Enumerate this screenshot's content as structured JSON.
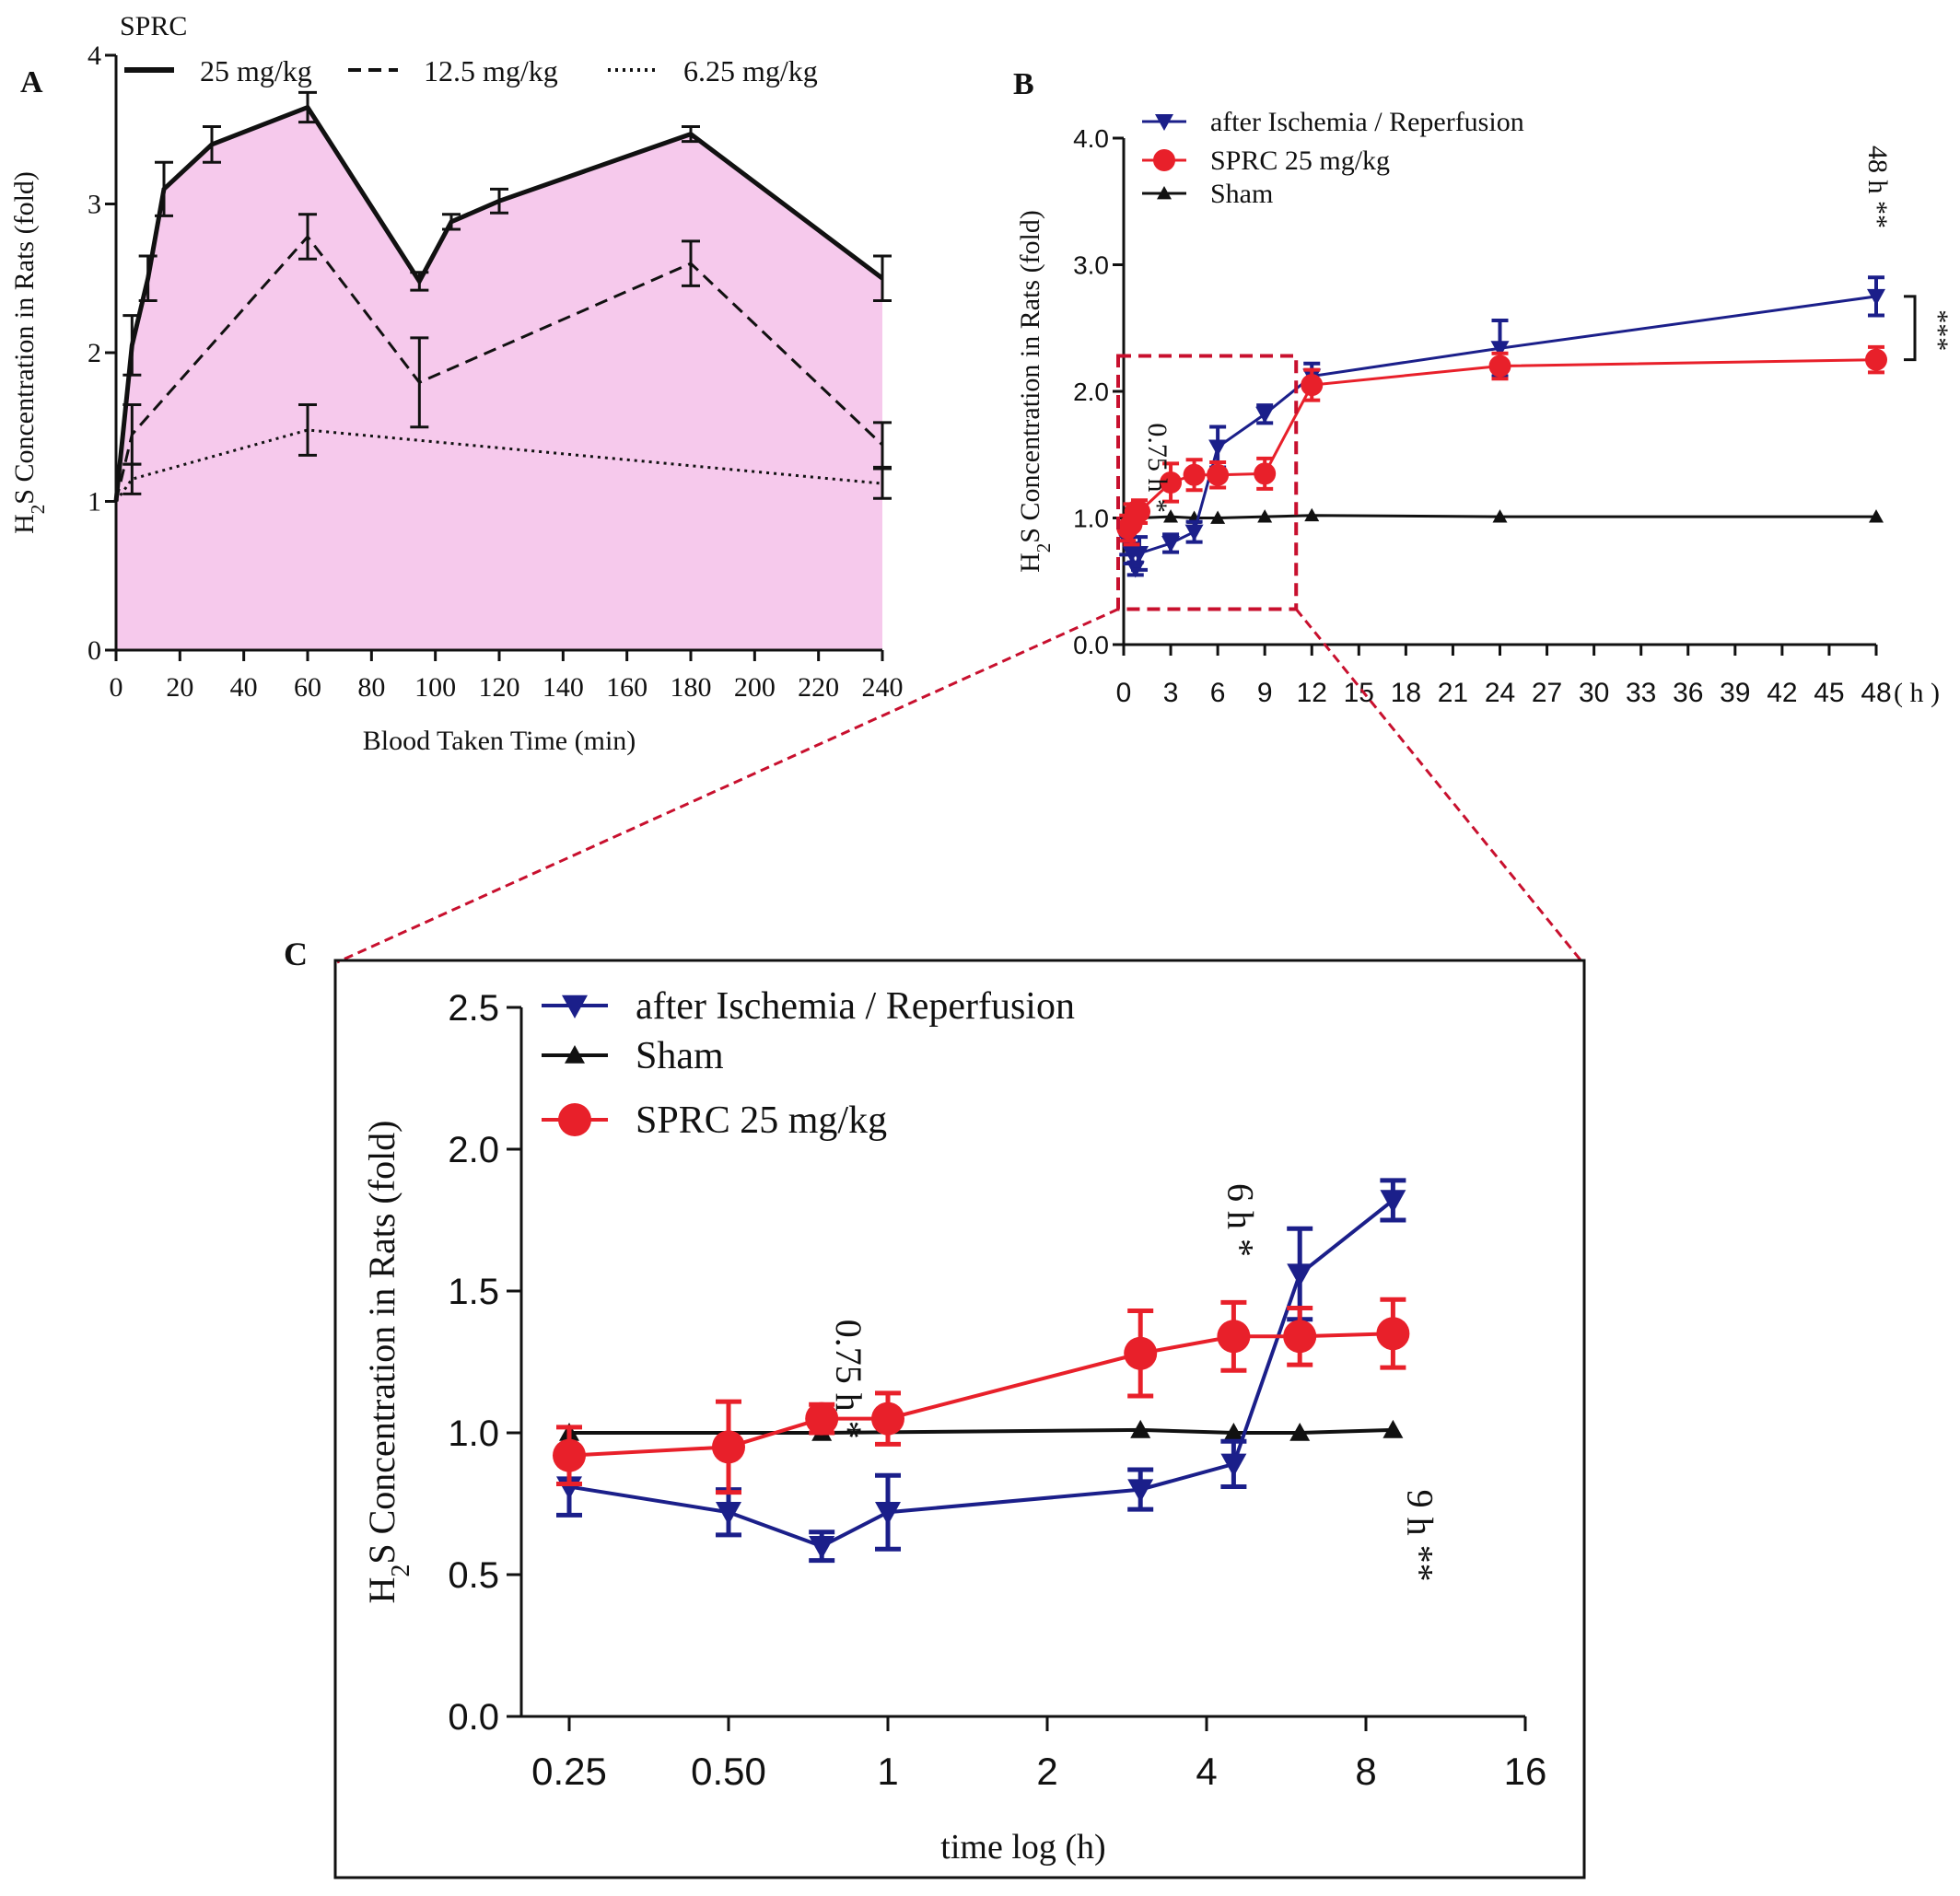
{
  "chart_data": [
    {
      "panel": "A",
      "type": "area",
      "title": "",
      "xlabel": "Blood Taken Time (min)",
      "ylabel": "H2S Concentration in Rats  (fold)",
      "xlim": [
        0,
        240
      ],
      "ylim": [
        0,
        4
      ],
      "xticks": [
        0,
        20,
        40,
        60,
        80,
        100,
        120,
        140,
        160,
        180,
        200,
        220,
        240
      ],
      "yticks": [
        0,
        1,
        2,
        3,
        4
      ],
      "legend_title": "SPRC",
      "legend_position": "top",
      "fill_color": "#f6c9ec",
      "series": [
        {
          "name": "25 mg/kg",
          "style": "solid",
          "x": [
            0,
            5,
            10,
            15,
            30,
            60,
            95,
            105,
            120,
            180,
            240
          ],
          "y": [
            1.0,
            2.05,
            2.5,
            3.1,
            3.4,
            3.65,
            2.48,
            2.88,
            3.02,
            3.47,
            2.5
          ],
          "err": [
            0.03,
            0.2,
            0.15,
            0.18,
            0.12,
            0.1,
            0.06,
            0.05,
            0.08,
            0.05,
            0.15
          ]
        },
        {
          "name": "12.5 mg/kg",
          "style": "dashed",
          "x": [
            0,
            5,
            60,
            95,
            180,
            240
          ],
          "y": [
            1.0,
            1.45,
            2.78,
            1.8,
            2.6,
            1.38
          ],
          "err": [
            0.03,
            0.2,
            0.15,
            0.3,
            0.15,
            0.15
          ]
        },
        {
          "name": "6.25 mg/kg",
          "style": "dotted",
          "x": [
            0,
            5,
            60,
            240
          ],
          "y": [
            1.0,
            1.15,
            1.48,
            1.12
          ],
          "err": [
            0.03,
            0.1,
            0.17,
            0.1
          ]
        }
      ]
    },
    {
      "panel": "B",
      "type": "line",
      "title": "",
      "xlabel": "",
      "x_unit": "( h )",
      "ylabel": "H2S Concentration in Rats (fold)",
      "xlim": [
        0,
        48
      ],
      "ylim": [
        0,
        4
      ],
      "xticks": [
        0,
        3,
        6,
        9,
        12,
        15,
        18,
        21,
        24,
        27,
        30,
        33,
        36,
        39,
        42,
        45,
        48
      ],
      "yticks": [
        "0.0",
        "1.0",
        "2.0",
        "3.0",
        "4.0"
      ],
      "legend_position": "top-left",
      "series": [
        {
          "name": "after Ischemia / Reperfusion",
          "color": "#1b1f8a",
          "marker": "triangle-down",
          "x": [
            0.25,
            0.5,
            0.75,
            1,
            3,
            4.5,
            6,
            9,
            12,
            24,
            48
          ],
          "y": [
            0.81,
            0.72,
            0.6,
            0.72,
            0.8,
            0.89,
            1.56,
            1.82,
            2.12,
            2.34,
            2.75
          ],
          "err": [
            0.1,
            0.08,
            0.05,
            0.13,
            0.07,
            0.08,
            0.16,
            0.07,
            0.1,
            0.22,
            0.15
          ]
        },
        {
          "name": "SPRC 25 mg/kg",
          "color": "#e8202a",
          "marker": "circle",
          "x": [
            0.25,
            0.5,
            0.75,
            1,
            3,
            4.5,
            6,
            9,
            12,
            24,
            48
          ],
          "y": [
            0.92,
            0.95,
            1.05,
            1.05,
            1.28,
            1.34,
            1.34,
            1.35,
            2.05,
            2.2,
            2.25
          ],
          "err": [
            0.1,
            0.16,
            0.05,
            0.09,
            0.15,
            0.12,
            0.1,
            0.12,
            0.12,
            0.1,
            0.1
          ]
        },
        {
          "name": "Sham",
          "color": "#111111",
          "marker": "triangle-up",
          "x": [
            0.25,
            0.5,
            0.75,
            1,
            3,
            4.5,
            6,
            9,
            12,
            24,
            48
          ],
          "y": [
            1.0,
            1.01,
            1.0,
            1.0,
            1.01,
            1.0,
            1.0,
            1.01,
            1.02,
            1.01,
            1.01
          ],
          "err": [
            0,
            0,
            0,
            0,
            0,
            0,
            0,
            0,
            0,
            0,
            0
          ]
        }
      ],
      "annotations": [
        {
          "text": "0.75 h *",
          "x": 0.75,
          "y": 1.75
        },
        {
          "text": "48 h **",
          "x": 48,
          "y": 3.55
        },
        {
          "text": "***",
          "x": 48,
          "y": 2.5
        }
      ],
      "zoom_box": {
        "x": [
          0,
          11
        ],
        "y": [
          0.28,
          2.28
        ]
      }
    },
    {
      "panel": "C",
      "type": "line",
      "title": "",
      "xlabel": "time log (h)",
      "ylabel": "H2S Concentration in Rats (fold)",
      "xscale": "log2",
      "xlim": [
        0.25,
        16
      ],
      "ylim": [
        0,
        2.5
      ],
      "xticks": [
        "0.25",
        "0.50",
        "1",
        "2",
        "4",
        "8",
        "16"
      ],
      "yticks": [
        "0.0",
        "0.5",
        "1.0",
        "1.5",
        "2.0",
        "2.5"
      ],
      "legend_position": "top-left",
      "series": [
        {
          "name": "after Ischemia / Reperfusion",
          "color": "#1b1f8a",
          "marker": "triangle-down",
          "x": [
            0.25,
            0.5,
            0.75,
            1,
            3,
            4.5,
            6,
            9
          ],
          "y": [
            0.81,
            0.72,
            0.6,
            0.72,
            0.8,
            0.89,
            1.56,
            1.82
          ],
          "err": [
            0.1,
            0.08,
            0.05,
            0.13,
            0.07,
            0.08,
            0.16,
            0.07
          ]
        },
        {
          "name": "Sham",
          "color": "#111111",
          "marker": "triangle-up",
          "x": [
            0.25,
            0.75,
            3,
            4.5,
            6,
            9
          ],
          "y": [
            1.0,
            1.0,
            1.01,
            1.0,
            1.0,
            1.01
          ],
          "err": [
            0,
            0,
            0,
            0,
            0,
            0
          ]
        },
        {
          "name": "SPRC 25 mg/kg",
          "color": "#e8202a",
          "marker": "circle",
          "x": [
            0.25,
            0.5,
            0.75,
            1,
            3,
            4.5,
            6,
            9
          ],
          "y": [
            0.92,
            0.95,
            1.05,
            1.05,
            1.28,
            1.34,
            1.34,
            1.35
          ],
          "err": [
            0.1,
            0.16,
            0.05,
            0.09,
            0.15,
            0.12,
            0.1,
            0.12
          ]
        }
      ],
      "annotations": [
        {
          "text": "0.75 h *",
          "x": 0.75,
          "y": 1.4
        },
        {
          "text": "6 h *",
          "x": 4.5,
          "y": 1.88
        },
        {
          "text": "9 h **",
          "x": 9,
          "y": 0.8
        }
      ]
    }
  ],
  "panel_labels": {
    "a": "A",
    "b": "B",
    "c": "C"
  },
  "colors": {
    "zoom": "#c8102e"
  }
}
